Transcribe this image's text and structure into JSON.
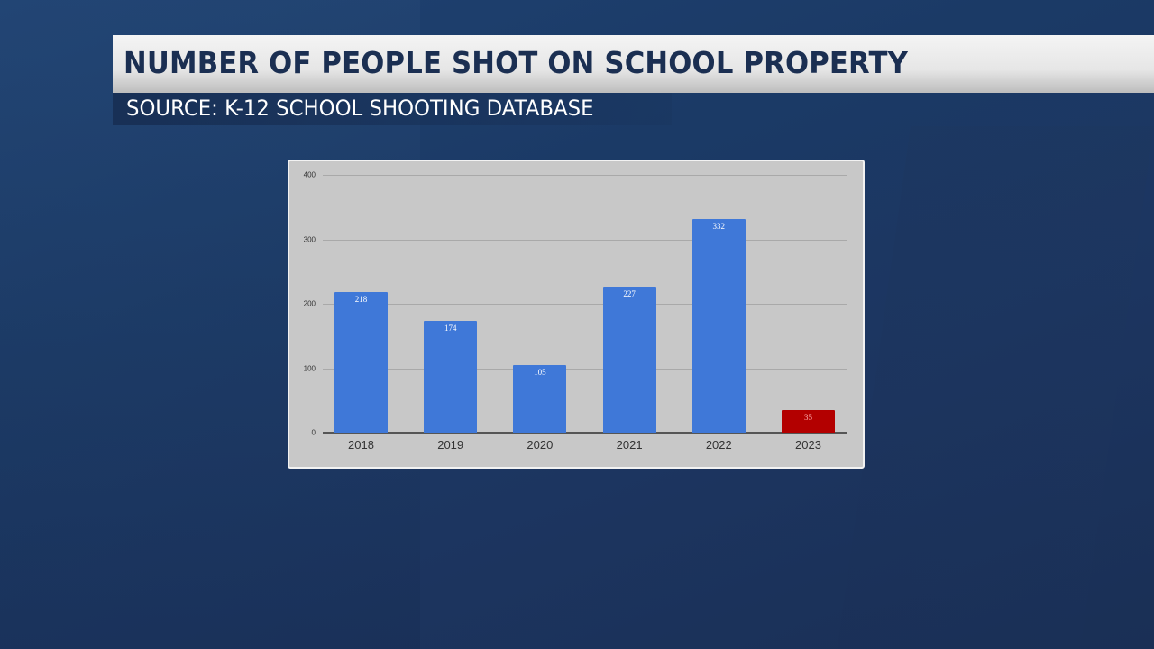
{
  "header": {
    "title": "NUMBER OF PEOPLE SHOT ON SCHOOL PROPERTY",
    "source": "SOURCE: K-12 SCHOOL SHOOTING DATABASE"
  },
  "colors": {
    "bar_default": "#3f78d8",
    "bar_highlight": "#b30000",
    "title_text": "#1b2f52",
    "chart_background": "#c8c8c8"
  },
  "chart_data": {
    "type": "bar",
    "title": "NUMBER OF PEOPLE SHOT ON SCHOOL PROPERTY",
    "subtitle": "SOURCE: K-12 SCHOOL SHOOTING DATABASE",
    "xlabel": "",
    "ylabel": "",
    "categories": [
      "2018",
      "2019",
      "2020",
      "2021",
      "2022",
      "2023"
    ],
    "values": [
      218,
      174,
      105,
      227,
      332,
      35
    ],
    "data_labels": [
      "218",
      "174",
      "105",
      "227",
      "332",
      "35"
    ],
    "bar_colors": [
      "#3f78d8",
      "#3f78d8",
      "#3f78d8",
      "#3f78d8",
      "#3f78d8",
      "#b30000"
    ],
    "ylim": [
      0,
      400
    ],
    "yticks": [
      "0",
      "100",
      "200",
      "300",
      "400"
    ],
    "grid": true,
    "legend": "none"
  }
}
